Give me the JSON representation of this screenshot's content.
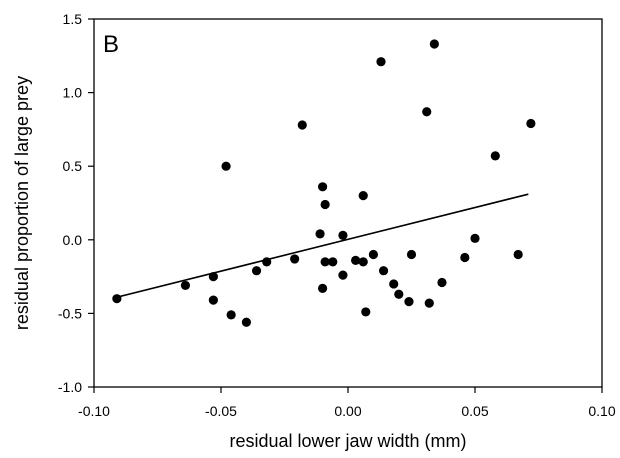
{
  "chart_data": {
    "type": "scatter",
    "panel_label": "B",
    "xlabel": "residual lower jaw width (mm)",
    "ylabel": "residual proportion of large prey",
    "xlim": [
      -0.1,
      0.1
    ],
    "ylim": [
      -1.0,
      1.5
    ],
    "xticks": [
      "-0.10",
      "-0.05",
      "0.00",
      "0.05",
      "0.10"
    ],
    "xtick_values": [
      -0.1,
      -0.05,
      0.0,
      0.05,
      0.1
    ],
    "yticks": [
      "-1.0",
      "-0.5",
      "0.0",
      "0.5",
      "1.0",
      "1.5"
    ],
    "ytick_values": [
      -1.0,
      -0.5,
      0.0,
      0.5,
      1.0,
      1.5
    ],
    "grid": false,
    "points": [
      {
        "x": -0.091,
        "y": -0.4
      },
      {
        "x": -0.064,
        "y": -0.31
      },
      {
        "x": -0.053,
        "y": -0.25
      },
      {
        "x": -0.053,
        "y": -0.41
      },
      {
        "x": -0.048,
        "y": 0.5
      },
      {
        "x": -0.046,
        "y": -0.51
      },
      {
        "x": -0.04,
        "y": -0.56
      },
      {
        "x": -0.036,
        "y": -0.21
      },
      {
        "x": -0.032,
        "y": -0.15
      },
      {
        "x": -0.021,
        "y": -0.13
      },
      {
        "x": -0.018,
        "y": 0.78
      },
      {
        "x": -0.011,
        "y": 0.04
      },
      {
        "x": -0.01,
        "y": 0.36
      },
      {
        "x": -0.01,
        "y": -0.33
      },
      {
        "x": -0.009,
        "y": 0.24
      },
      {
        "x": -0.009,
        "y": -0.15
      },
      {
        "x": -0.006,
        "y": -0.15
      },
      {
        "x": -0.002,
        "y": 0.03
      },
      {
        "x": -0.002,
        "y": -0.24
      },
      {
        "x": 0.003,
        "y": -0.14
      },
      {
        "x": 0.006,
        "y": 0.3
      },
      {
        "x": 0.006,
        "y": -0.15
      },
      {
        "x": 0.007,
        "y": -0.49
      },
      {
        "x": 0.01,
        "y": -0.1
      },
      {
        "x": 0.013,
        "y": 1.21
      },
      {
        "x": 0.014,
        "y": -0.21
      },
      {
        "x": 0.018,
        "y": -0.3
      },
      {
        "x": 0.02,
        "y": -0.37
      },
      {
        "x": 0.024,
        "y": -0.42
      },
      {
        "x": 0.025,
        "y": -0.1
      },
      {
        "x": 0.031,
        "y": 0.87
      },
      {
        "x": 0.032,
        "y": -0.43
      },
      {
        "x": 0.034,
        "y": 1.33
      },
      {
        "x": 0.037,
        "y": -0.29
      },
      {
        "x": 0.046,
        "y": -0.12
      },
      {
        "x": 0.05,
        "y": 0.01
      },
      {
        "x": 0.058,
        "y": 0.57
      },
      {
        "x": 0.067,
        "y": -0.1
      },
      {
        "x": 0.072,
        "y": 0.79
      }
    ],
    "regression_line": {
      "x": [
        -0.091,
        0.071
      ],
      "y": [
        -0.39,
        0.31
      ]
    }
  }
}
